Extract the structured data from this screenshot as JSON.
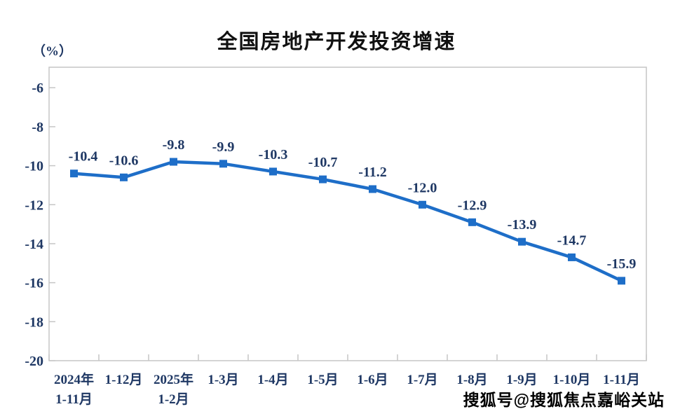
{
  "page": {
    "title": "全国房地产开发投资增速",
    "y_axis_unit": "（%）",
    "watermark": "搜狐号@搜狐焦点嘉峪关站"
  },
  "chart_data": {
    "type": "line",
    "title": "全国房地产开发投资增速",
    "ylabel": "（%）",
    "categories": [
      "2024年\n1-11月",
      "1-12月",
      "2025年\n1-2月",
      "1-3月",
      "1-4月",
      "1-5月",
      "1-6月",
      "1-7月",
      "1-8月",
      "1-9月",
      "1-10月",
      "1-11月"
    ],
    "values": [
      -10.4,
      -10.6,
      -9.8,
      -9.9,
      -10.3,
      -10.7,
      -11.2,
      -12.0,
      -12.9,
      -13.9,
      -14.7,
      -15.9
    ],
    "data_labels": [
      "-10.4",
      "-10.6",
      "-9.8",
      "-9.9",
      "-10.3",
      "-10.7",
      "-11.2",
      "-12.0",
      "-12.9",
      "-13.9",
      "-14.7",
      "-15.9"
    ],
    "y_ticks": [
      -6,
      -8,
      -10,
      -12,
      -14,
      -16,
      -18,
      -20
    ],
    "ylim": [
      -20,
      -4.95
    ],
    "grid": false,
    "legend": "none",
    "line_color": "#1e6ec8",
    "marker": "square",
    "axis_color": "#c6c6c6",
    "label_color": "#1f3864"
  }
}
